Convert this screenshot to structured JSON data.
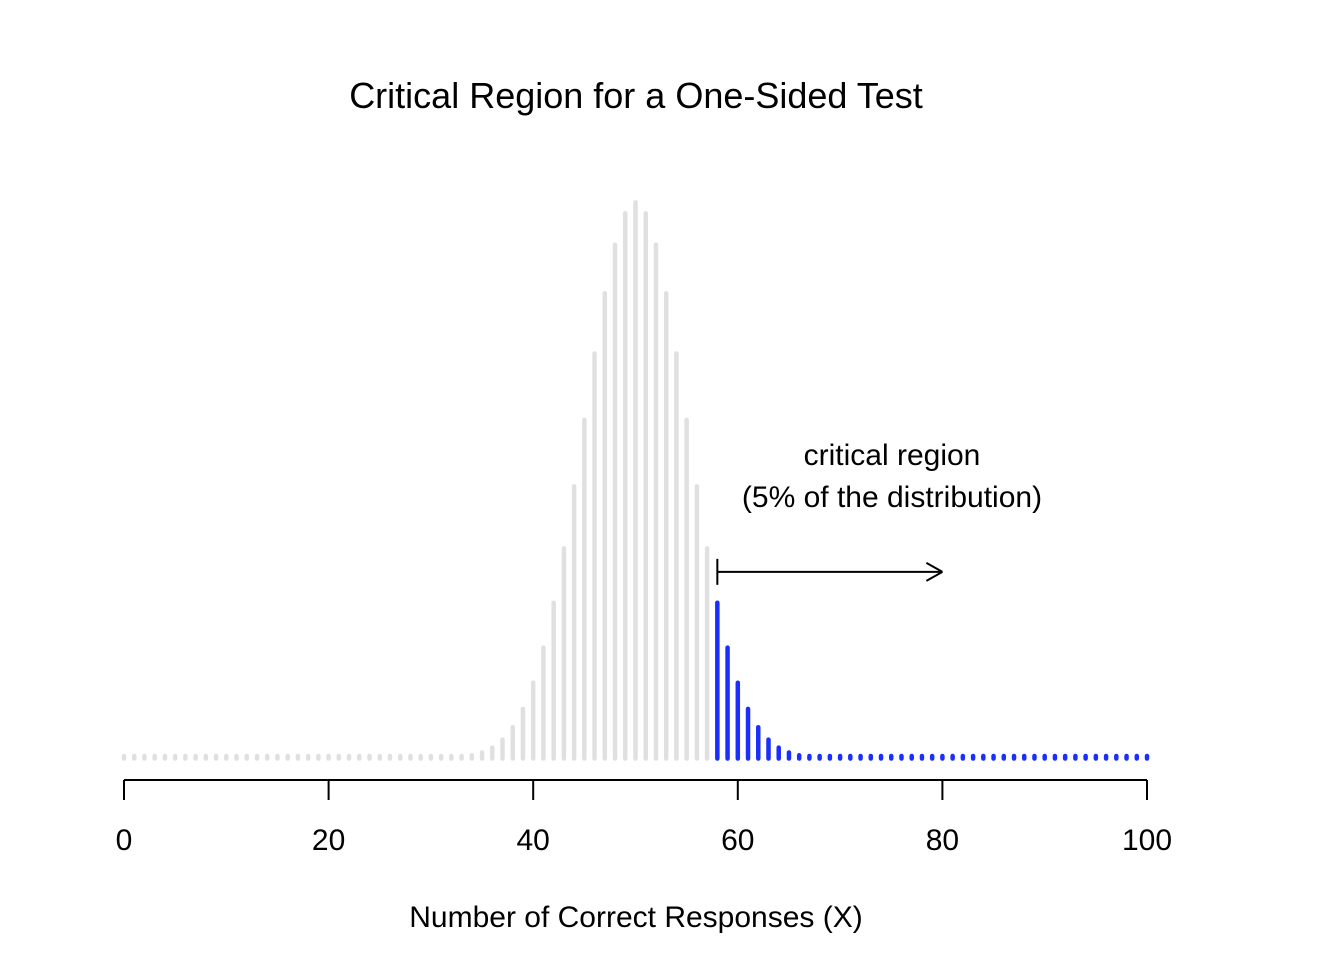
{
  "chart_data": {
    "type": "bar",
    "title": "Critical Region for a One-Sided Test",
    "xlabel": "Number of Correct Responses (X)",
    "ylabel": "",
    "distribution": "Binomial(n = 100, p = 0.5)",
    "x_min": 0,
    "x_max": 100,
    "xlim": [
      0,
      100
    ],
    "ylim": [
      0,
      0.08
    ],
    "xticks": [
      0,
      20,
      40,
      60,
      80,
      100
    ],
    "xtick_labels": [
      "0",
      "20",
      "40",
      "60",
      "80",
      "100"
    ],
    "y_axis_shown": false,
    "grid": false,
    "critical_value": 58,
    "series": [
      {
        "color": "#e0e0e0",
        "range": [
          0,
          57
        ]
      },
      {
        "color": "#1a2eff",
        "range": [
          58,
          100
        ]
      }
    ],
    "annotation": {
      "line1": "critical region",
      "line2": "(5% of the distribution)",
      "arrow_from_x": 58,
      "arrow_to_x": 80,
      "arrow_y": 0.0265
    }
  }
}
